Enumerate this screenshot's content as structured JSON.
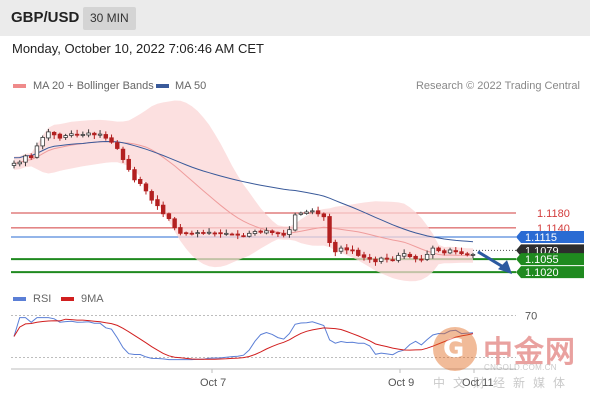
{
  "header": {
    "pair": "GBP/USD",
    "timeframe": "30 MIN"
  },
  "date_text": "Monday, October 10, 2022 7:06:46 AM CET",
  "legend": {
    "main": [
      {
        "label": "MA 20 + Bollinger Bands",
        "color": "#ef8a8a"
      },
      {
        "label": "MA 50",
        "color": "#3a5a9a"
      }
    ],
    "rsi": [
      {
        "label": "RSI",
        "color": "#5b7fd6"
      },
      {
        "label": "9MA",
        "color": "#d11f1f"
      }
    ]
  },
  "copyright": "Research © 2022 Trading Central",
  "x_labels": [
    "Oct 7",
    "Oct 9",
    "Oct 11"
  ],
  "watermark": {
    "logo_char": "G",
    "name": "中金网",
    "url": "CNGOLD.COM.CN",
    "tagline": "中文财经新媒体"
  },
  "chart_data": [
    {
      "type": "candlestick",
      "title": "GBP/USD",
      "timeframe": "30 MIN",
      "ylim": [
        1.0985,
        1.15
      ],
      "x_ticks": [
        "Oct 7",
        "Oct 9",
        "Oct 11"
      ],
      "close_approx": [
        1.1315,
        1.1318,
        1.1335,
        1.133,
        1.1362,
        1.1385,
        1.14,
        1.1392,
        1.1383,
        1.139,
        1.1395,
        1.1392,
        1.1393,
        1.1397,
        1.1392,
        1.1394,
        1.1383,
        1.1372,
        1.1355,
        1.1325,
        1.1298,
        1.127,
        1.126,
        1.124,
        1.1215,
        1.12,
        1.1178,
        1.1165,
        1.114,
        1.1125,
        1.1125,
        1.1123,
        1.1127,
        1.1125,
        1.1128,
        1.1126,
        1.1124,
        1.1125,
        1.1123,
        1.112,
        1.1118,
        1.1125,
        1.113,
        1.1128,
        1.1132,
        1.1127,
        1.1125,
        1.112,
        1.1135,
        1.1175,
        1.118,
        1.1183,
        1.1186,
        1.1178,
        1.117,
        1.11,
        1.1075,
        1.1085,
        1.108,
        1.1078,
        1.1065,
        1.106,
        1.1055,
        1.1048,
        1.1058,
        1.1055,
        1.1053,
        1.1065,
        1.107,
        1.1062,
        1.1056,
        1.1055,
        1.1068,
        1.1085,
        1.1078,
        1.1072,
        1.108,
        1.1075,
        1.107,
        1.1069,
        1.1068
      ],
      "series": [
        {
          "name": "MA 20 + Bollinger Bands",
          "color": "#ef8a8a"
        },
        {
          "name": "MA 50",
          "color": "#3a5a9a"
        }
      ],
      "levels": [
        {
          "value": 1.118,
          "label": "1.1180",
          "kind": "resistance",
          "color": "#d23c3c"
        },
        {
          "value": 1.114,
          "label": "1.1140",
          "kind": "resistance",
          "color": "#d23c3c"
        },
        {
          "value": 1.1115,
          "label": "1.1115",
          "kind": "pivot",
          "color": "#2a6bd3"
        },
        {
          "value": 1.1079,
          "label": "1.1079",
          "kind": "last",
          "color": "#2d2d2d"
        },
        {
          "value": 1.1055,
          "label": "1.1055",
          "kind": "support",
          "color": "#1f8a1f"
        },
        {
          "value": 1.102,
          "label": "1.1020",
          "kind": "support",
          "color": "#1f8a1f"
        }
      ],
      "annotation": "Blue arrow pointing down toward 1.1020 support"
    },
    {
      "type": "line",
      "title": "RSI",
      "ylim": [
        20,
        80
      ],
      "levels": [
        {
          "value": 70,
          "label": "70"
        }
      ],
      "series": [
        {
          "name": "RSI",
          "color": "#5b7fd6"
        },
        {
          "name": "9MA",
          "color": "#d11f1f"
        }
      ]
    }
  ]
}
